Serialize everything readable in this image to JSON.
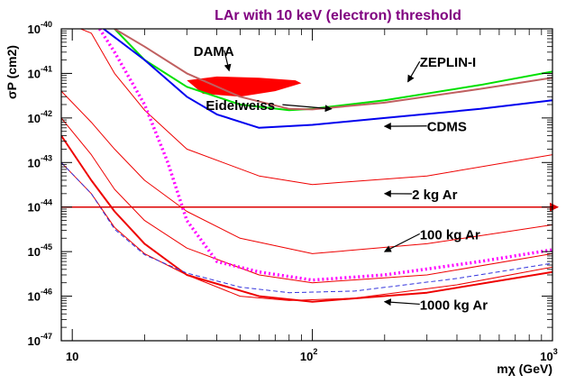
{
  "chart_data": {
    "type": "line",
    "title": "LAr with 10 keV (electron) threshold",
    "xlabel": "mχ (GeV)",
    "ylabel": "σP (cm2)",
    "x_scale": "log",
    "y_scale": "log",
    "xlim": [
      9,
      1000
    ],
    "ylim": [
      1e-47,
      1e-40
    ],
    "x_ticks": [
      {
        "value": 10,
        "label": "10"
      },
      {
        "value": 100,
        "label": "10",
        "exp": "2"
      },
      {
        "value": 1000,
        "label": "10",
        "exp": "3"
      }
    ],
    "y_ticks": [
      {
        "value": 1e-40,
        "label": "10",
        "exp": "-40"
      },
      {
        "value": 1e-41,
        "label": "10",
        "exp": "-41"
      },
      {
        "value": 1e-42,
        "label": "10",
        "exp": "-42"
      },
      {
        "value": 1e-43,
        "label": "10",
        "exp": "-43"
      },
      {
        "value": 1e-44,
        "label": "10",
        "exp": "-44"
      },
      {
        "value": 1e-45,
        "label": "10",
        "exp": "-45"
      },
      {
        "value": 1e-46,
        "label": "10",
        "exp": "-46"
      },
      {
        "value": 1e-47,
        "label": "10",
        "exp": "-47"
      }
    ],
    "colors": {
      "frame": "#000000",
      "title": "#800080",
      "dama": "#ff0000",
      "zeplin": "#00e000",
      "zeplin2": "#c06060",
      "cdms": "#0000ee",
      "ar_curves": "#ee0000",
      "magenta": "#ff00ff",
      "dashed": "#3333dd",
      "hline": "#dd0000"
    },
    "series": [
      {
        "key": "zeplin",
        "style": "solid",
        "x": [
          15,
          20,
          30,
          50,
          80,
          100,
          200,
          500,
          1000
        ],
        "y": [
          1e-40,
          2e-41,
          5e-42,
          2e-42,
          1.5e-42,
          1.6e-42,
          2.5e-42,
          5.5e-42,
          1.1e-41
        ]
      },
      {
        "key": "zeplin2",
        "style": "solid",
        "x": [
          15,
          20,
          30,
          50,
          80,
          100,
          200,
          500,
          1000
        ],
        "y": [
          1e-40,
          4e-41,
          1e-41,
          3e-42,
          1.6e-42,
          1.55e-42,
          2.2e-42,
          4.5e-42,
          8e-42
        ]
      },
      {
        "key": "cdms",
        "style": "solid",
        "x": [
          13.5,
          20,
          30,
          40,
          60,
          100,
          200,
          500,
          1000
        ],
        "y": [
          1e-40,
          2e-41,
          3e-42,
          1.2e-42,
          6e-43,
          7e-43,
          1e-42,
          1.6e-42,
          2.5e-42
        ]
      },
      {
        "key": "ar_curves",
        "style": "solid",
        "x": [
          9,
          12,
          15,
          20,
          30,
          60,
          100,
          300,
          1000
        ],
        "y": [
          1.5e-40,
          8e-41,
          1e-41,
          1.5e-42,
          2e-43,
          5e-44,
          3.2e-44,
          5e-44,
          1.5e-43
        ]
      },
      {
        "key": "ar_curves",
        "style": "solid",
        "x": [
          9,
          12,
          15,
          20,
          30,
          50,
          100,
          300,
          1000
        ],
        "y": [
          4e-42,
          8e-43,
          2e-43,
          4e-44,
          8e-45,
          2e-45,
          9e-46,
          1.5e-45,
          4e-45
        ]
      },
      {
        "key": "ar_curves",
        "style": "solid",
        "x": [
          9,
          12,
          15,
          20,
          30,
          50,
          80,
          150,
          400,
          1000
        ],
        "y": [
          1e-43,
          2e-44,
          3.5e-45,
          9e-46,
          3e-46,
          1e-46,
          8e-47,
          9e-47,
          1.8e-46,
          4.5e-46
        ]
      },
      {
        "key": "ar_curves",
        "style": "solid",
        "x": [
          9,
          12,
          15,
          20,
          30,
          60,
          100,
          300,
          1000
        ],
        "y": [
          4e-43,
          4e-44,
          8e-45,
          1.5e-45,
          3e-46,
          1e-46,
          7.5e-47,
          1.2e-46,
          3.5e-46
        ]
      },
      {
        "key": "ar_curves",
        "style": "solid",
        "x": [
          9,
          12,
          15,
          20,
          30,
          60,
          100,
          300,
          1000
        ],
        "y": [
          1e-42,
          1.5e-43,
          2.5e-44,
          5e-45,
          1.2e-45,
          3e-46,
          2e-46,
          3e-46,
          9e-46
        ]
      },
      {
        "key": "dashed",
        "style": "dashed",
        "x": [
          9,
          12,
          15,
          20,
          30,
          50,
          80,
          150,
          400,
          1000
        ],
        "y": [
          1e-43,
          2e-44,
          3.2e-45,
          8.5e-46,
          3.3e-46,
          1.6e-46,
          1.2e-46,
          1.3e-46,
          2.5e-46,
          5.5e-46
        ]
      },
      {
        "key": "magenta",
        "style": "dotted",
        "x": [
          13,
          15,
          20,
          25,
          30,
          40,
          60,
          100,
          200,
          500,
          1000
        ],
        "y": [
          1e-40,
          3e-41,
          2e-42,
          1e-43,
          5e-45,
          6e-46,
          3.5e-46,
          2.3e-46,
          3e-46,
          6e-46,
          1.1e-45
        ]
      },
      {
        "key": "hline",
        "style": "arrow",
        "x": [
          9,
          1000
        ],
        "y": [
          1e-44,
          1e-44
        ]
      }
    ],
    "regions": [
      {
        "name": "DAMA",
        "x": [
          30,
          35,
          50,
          70,
          90,
          85,
          60,
          40,
          30
        ],
        "y": [
          7e-42,
          3.5e-42,
          3e-42,
          4e-42,
          6e-42,
          7e-42,
          8e-42,
          8.5e-42,
          7e-42
        ]
      }
    ],
    "annotations": [
      {
        "text": "DAMA",
        "tx": 32,
        "ty": 2.5e-41,
        "ax": 45,
        "ay": 1.15e-41
      },
      {
        "text": "ZEPLIN-I",
        "tx": 280,
        "ty": 1.4e-41,
        "ax": 250,
        "ay": 6.5e-42
      },
      {
        "text": "Eidelweiss",
        "tx": 36,
        "ty": 1.5e-42,
        "ax": 120,
        "ay": 1.6e-42
      },
      {
        "text": "CDMS",
        "tx": 300,
        "ty": 5e-43,
        "ax": 200,
        "ay": 6.5e-43
      },
      {
        "text": "2 kg Ar",
        "tx": 260,
        "ty": 1.5e-44,
        "ax": 200,
        "ay": 2e-44
      },
      {
        "text": "100 kg Ar",
        "tx": 280,
        "ty": 1.9e-45,
        "ax": 200,
        "ay": 1e-45
      },
      {
        "text": "1000 kg Ar",
        "tx": 280,
        "ty": 5e-47,
        "ax": 200,
        "ay": 7.5e-47
      }
    ]
  }
}
